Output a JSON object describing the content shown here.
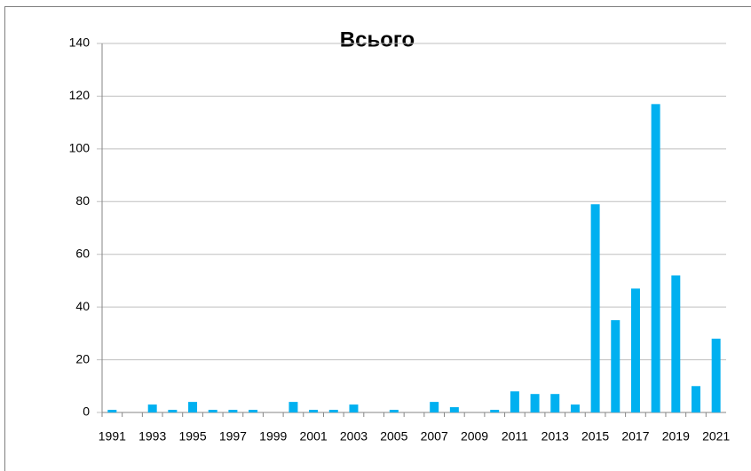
{
  "chart_data": {
    "type": "bar",
    "title": "Всього",
    "categories": [
      "1991",
      null,
      "1993",
      null,
      "1995",
      null,
      "1997",
      null,
      "1999",
      null,
      "2001",
      null,
      "2003",
      null,
      "2005",
      null,
      "2007",
      null,
      "2009",
      null,
      "2011",
      null,
      "2013",
      null,
      "2015",
      null,
      "2017",
      null,
      "2019",
      null,
      "2021"
    ],
    "values": [
      1,
      0,
      3,
      1,
      4,
      1,
      1,
      1,
      0,
      4,
      1,
      1,
      3,
      0,
      1,
      0,
      4,
      2,
      0,
      1,
      8,
      7,
      7,
      3,
      79,
      35,
      47,
      117,
      52,
      10,
      28
    ],
    "color": "#00b0f0",
    "ylim": [
      0,
      140
    ],
    "yticks": [
      0,
      20,
      40,
      60,
      80,
      100,
      120,
      140
    ],
    "grid": true
  }
}
